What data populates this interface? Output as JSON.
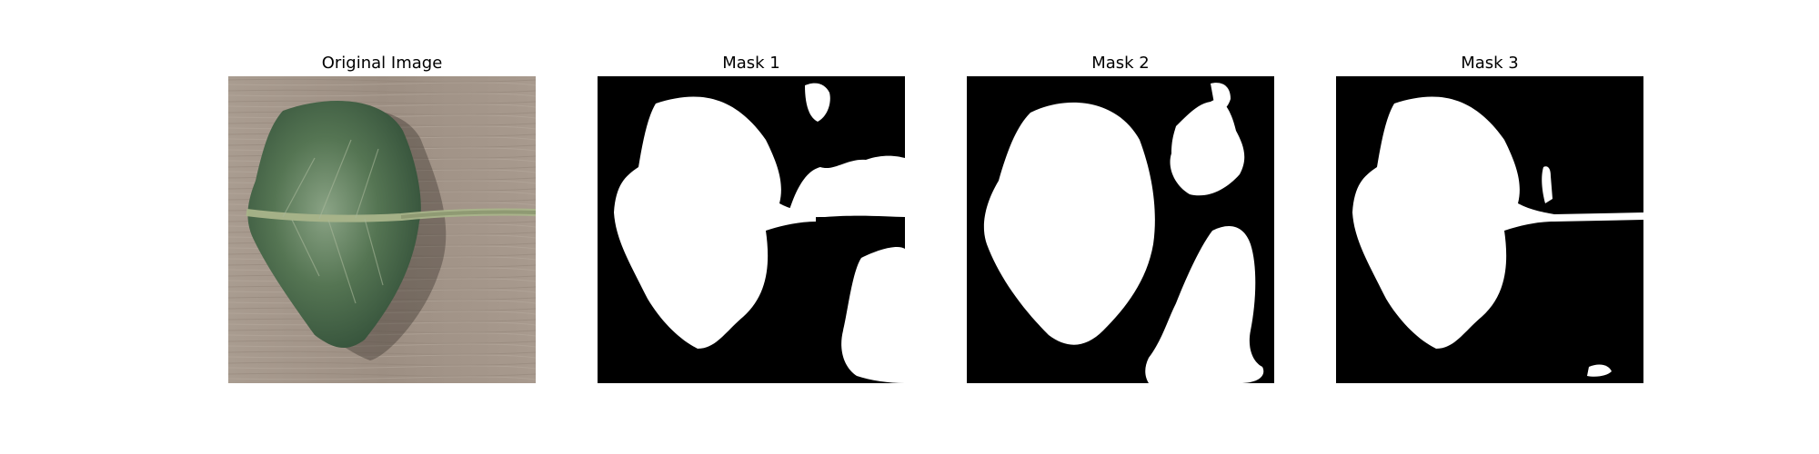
{
  "panels": [
    {
      "title": "Original Image",
      "kind": "photo"
    },
    {
      "title": "Mask 1",
      "kind": "mask"
    },
    {
      "title": "Mask 2",
      "kind": "mask"
    },
    {
      "title": "Mask 3",
      "kind": "mask"
    }
  ],
  "colors": {
    "background": "#ffffff",
    "mask_fg": "#ffffff",
    "mask_bg": "#000000",
    "wood": "#a4968a",
    "leaf": "#4f6e4d"
  }
}
